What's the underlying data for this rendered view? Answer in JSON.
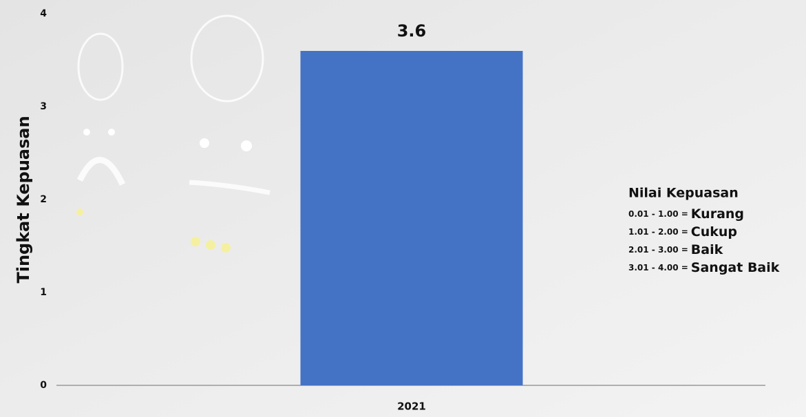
{
  "chart_data": {
    "type": "bar",
    "y_label": "Tingkat Kepuasan",
    "categories": [
      "2021"
    ],
    "values": [
      3.6
    ],
    "color": "#4472c4",
    "ylim": [
      0,
      4
    ],
    "yticks": [
      0,
      1,
      2,
      3,
      4
    ],
    "grid": false,
    "annotation": {
      "title": "Nilai Kepuasan",
      "scale": [
        {
          "range": "0.01 - 1.00 =",
          "label": "Kurang"
        },
        {
          "range": "1.01 - 2.00 =",
          "label": "Cukup"
        },
        {
          "range": "2.01 - 3.00 =",
          "label": "Baik"
        },
        {
          "range": "3.01 - 4.00 =",
          "label": "Sangat Baik"
        }
      ]
    }
  }
}
